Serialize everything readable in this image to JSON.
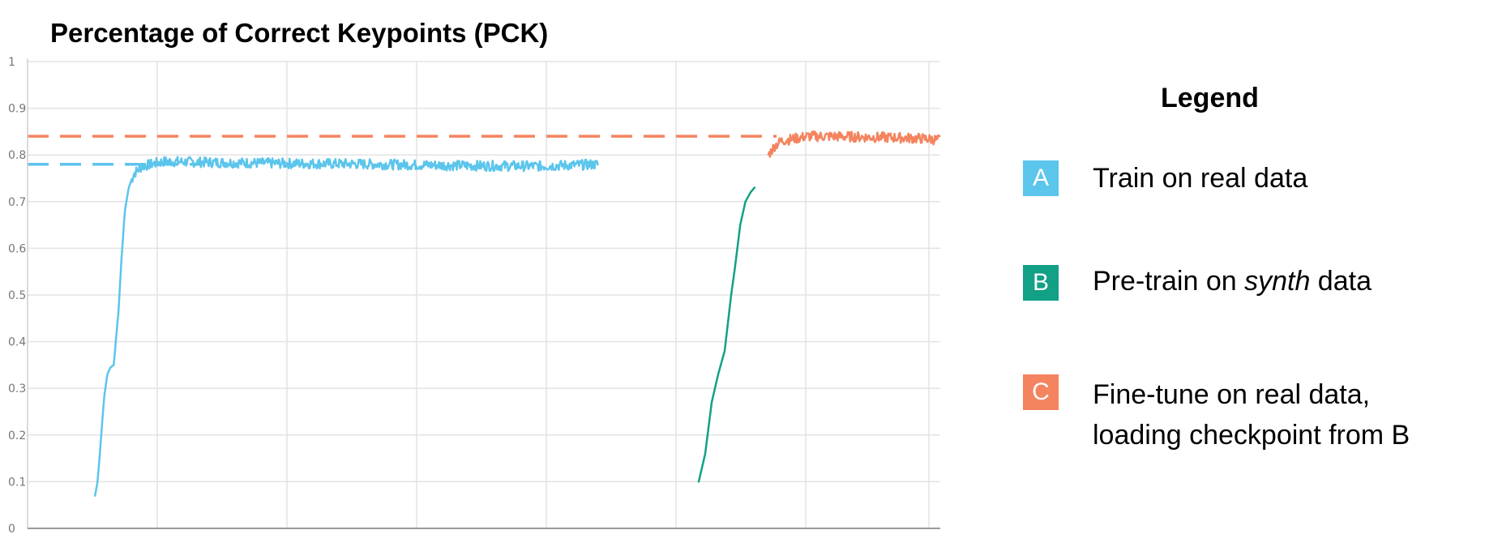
{
  "chart_data": {
    "type": "line",
    "title": "Percentage of Correct Keypoints (PCK)",
    "xlabel": "",
    "ylabel": "",
    "ylim": [
      0,
      1
    ],
    "y_ticks": [
      "0",
      "0.1",
      "0.2",
      "0.3",
      "0.4",
      "0.5",
      "0.6",
      "0.7",
      "0.8",
      "0.9",
      "1"
    ],
    "grid": true,
    "legend_title": "Legend",
    "legend_position": "right",
    "series": [
      {
        "name": "Train on real data",
        "key": "A",
        "color": "#5bc5ec",
        "values": [
          [
            0.07,
            0.07
          ],
          [
            0.09,
            0.1
          ],
          [
            0.11,
            0.17
          ],
          [
            0.14,
            0.28
          ],
          [
            0.165,
            0.33
          ],
          [
            0.19,
            0.345
          ],
          [
            0.215,
            0.35
          ],
          [
            0.23,
            0.4
          ],
          [
            0.25,
            0.46
          ],
          [
            0.275,
            0.58
          ],
          [
            0.3,
            0.68
          ],
          [
            0.33,
            0.73
          ],
          [
            0.37,
            0.76
          ],
          [
            0.43,
            0.775
          ],
          [
            0.5,
            0.78
          ],
          [
            0.6,
            0.786
          ],
          [
            0.8,
            0.785
          ],
          [
            1.0,
            0.784
          ],
          [
            1.5,
            0.782
          ],
          [
            2.0,
            0.781
          ],
          [
            2.5,
            0.779
          ],
          [
            3.0,
            0.777
          ],
          [
            3.5,
            0.776
          ],
          [
            3.95,
            0.78
          ]
        ],
        "reference_line": 0.78
      },
      {
        "name": "Pre-train on synth data",
        "key": "B",
        "color": "#12a086",
        "values": [
          [
            0.0,
            0.1
          ],
          [
            0.05,
            0.16
          ],
          [
            0.1,
            0.27
          ],
          [
            0.15,
            0.33
          ],
          [
            0.2,
            0.38
          ],
          [
            0.25,
            0.5
          ],
          [
            0.28,
            0.56
          ],
          [
            0.32,
            0.65
          ],
          [
            0.36,
            0.7
          ],
          [
            0.4,
            0.72
          ],
          [
            0.43,
            0.73
          ]
        ]
      },
      {
        "name": "Fine-tune on real data, loading checkpoint from B",
        "key": "C",
        "color": "#f4845f",
        "values": [
          [
            0.0,
            0.8
          ],
          [
            0.05,
            0.82
          ],
          [
            0.1,
            0.83
          ],
          [
            0.2,
            0.835
          ],
          [
            0.3,
            0.84
          ],
          [
            0.5,
            0.84
          ],
          [
            0.8,
            0.838
          ],
          [
            1.0,
            0.837
          ],
          [
            1.2,
            0.835
          ],
          [
            1.325,
            0.832
          ]
        ],
        "reference_line": 0.84
      }
    ]
  },
  "legend": {
    "title": "Legend",
    "items": [
      {
        "key": "A",
        "label": "Train on real data",
        "color": "#5bc5ec"
      },
      {
        "key": "B",
        "label_before": "Pre-train on ",
        "label_italic": "synth",
        "label_after": " data",
        "color": "#12a086"
      },
      {
        "key": "C",
        "label_line1": "Fine-tune on real data,",
        "label_line2": "loading checkpoint from B",
        "color": "#f4845f"
      }
    ]
  }
}
